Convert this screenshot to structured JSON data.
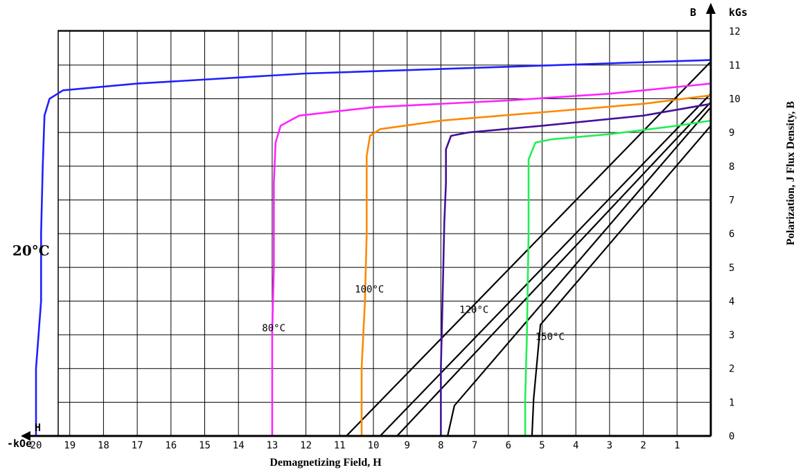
{
  "chart_data": {
    "type": "line",
    "title": "",
    "xlabel": "Demagnetizing Field, H",
    "ylabel": "Polarization, J Flux Density, B",
    "x_axis": {
      "symbol": "H",
      "unit": "-kOe",
      "range": [
        22,
        0
      ],
      "ticks": [
        20,
        19,
        18,
        17,
        16,
        15,
        14,
        13,
        12,
        11,
        10,
        9,
        8,
        7,
        6,
        5,
        4,
        3,
        2,
        1
      ],
      "grid_step": 1
    },
    "y_axis": {
      "symbol": "B",
      "unit": "kGs",
      "range": [
        0,
        12
      ],
      "ticks": [
        0,
        1,
        2,
        3,
        4,
        5,
        6,
        7,
        8,
        9,
        10,
        11,
        12
      ],
      "grid_step": 1
    },
    "grid": true,
    "j_curves": [
      {
        "label": "20°C",
        "color": "#1f1fff",
        "points": [
          [
            20.0,
            0
          ],
          [
            20.0,
            2
          ],
          [
            19.85,
            4
          ],
          [
            19.85,
            6
          ],
          [
            19.8,
            8
          ],
          [
            19.75,
            9.5
          ],
          [
            19.6,
            10.0
          ],
          [
            19.2,
            10.25
          ],
          [
            17,
            10.45
          ],
          [
            12,
            10.75
          ],
          [
            6,
            10.95
          ],
          [
            3,
            11.05
          ],
          [
            0,
            11.15
          ]
        ]
      },
      {
        "label": "80°C",
        "color": "#ff22ff",
        "points": [
          [
            13.0,
            0
          ],
          [
            13.0,
            3.1
          ],
          [
            12.95,
            5
          ],
          [
            12.95,
            7.5
          ],
          [
            12.9,
            8.7
          ],
          [
            12.75,
            9.2
          ],
          [
            12.2,
            9.5
          ],
          [
            10,
            9.75
          ],
          [
            6,
            9.95
          ],
          [
            3,
            10.15
          ],
          [
            0,
            10.45
          ]
        ]
      },
      {
        "label": "100°C",
        "color": "#ff8800",
        "points": [
          [
            10.35,
            0
          ],
          [
            10.35,
            2
          ],
          [
            10.25,
            4
          ],
          [
            10.2,
            6
          ],
          [
            10.2,
            8.3
          ],
          [
            10.1,
            8.9
          ],
          [
            9.8,
            9.1
          ],
          [
            8,
            9.35
          ],
          [
            5,
            9.6
          ],
          [
            2,
            9.85
          ],
          [
            0,
            10.1
          ]
        ]
      },
      {
        "label": "120°C",
        "color": "#441199",
        "points": [
          [
            8.0,
            0
          ],
          [
            8.0,
            2
          ],
          [
            7.95,
            4
          ],
          [
            7.9,
            6.3
          ],
          [
            7.85,
            7.5
          ],
          [
            7.85,
            8.5
          ],
          [
            7.7,
            8.9
          ],
          [
            7.2,
            9.0
          ],
          [
            5,
            9.2
          ],
          [
            2,
            9.5
          ],
          [
            0,
            9.85
          ]
        ]
      },
      {
        "label": "150°C",
        "color": "#22ee55",
        "points": [
          [
            5.5,
            0
          ],
          [
            5.5,
            1.1
          ],
          [
            5.45,
            3
          ],
          [
            5.4,
            6
          ],
          [
            5.4,
            8.2
          ],
          [
            5.2,
            8.7
          ],
          [
            4.7,
            8.8
          ],
          [
            3,
            8.95
          ],
          [
            1,
            9.2
          ],
          [
            0,
            9.35
          ]
        ]
      }
    ],
    "b_curves": [
      {
        "label": "20°C",
        "color": "#000000",
        "points": [
          [
            10.8,
            0
          ],
          [
            0,
            11.1
          ]
        ]
      },
      {
        "label": "80°C",
        "color": "#000000",
        "points": [
          [
            9.8,
            0
          ],
          [
            0,
            10.15
          ]
        ]
      },
      {
        "label": "100°C",
        "color": "#000000",
        "points": [
          [
            9.3,
            0
          ],
          [
            0,
            9.9
          ]
        ]
      },
      {
        "label": "120°C",
        "color": "#000000",
        "points": [
          [
            7.8,
            0
          ],
          [
            7.6,
            0.9
          ],
          [
            0,
            9.75
          ]
        ]
      },
      {
        "label": "150°C",
        "color": "#000000",
        "points": [
          [
            5.3,
            0
          ],
          [
            5.25,
            1.1
          ],
          [
            5.05,
            3.3
          ],
          [
            0,
            9.2
          ]
        ]
      }
    ],
    "annotations": [
      {
        "text": "20°C",
        "x": 20.7,
        "y": 5.35,
        "size": "large"
      },
      {
        "text": "80°C",
        "x": 13.3,
        "y": 3.1,
        "size": "normal"
      },
      {
        "text": "100°C",
        "x": 10.55,
        "y": 4.25,
        "size": "normal"
      },
      {
        "text": "120°C",
        "x": 7.45,
        "y": 3.65,
        "size": "normal"
      },
      {
        "text": "150°C",
        "x": 5.2,
        "y": 2.85,
        "size": "normal"
      }
    ]
  }
}
